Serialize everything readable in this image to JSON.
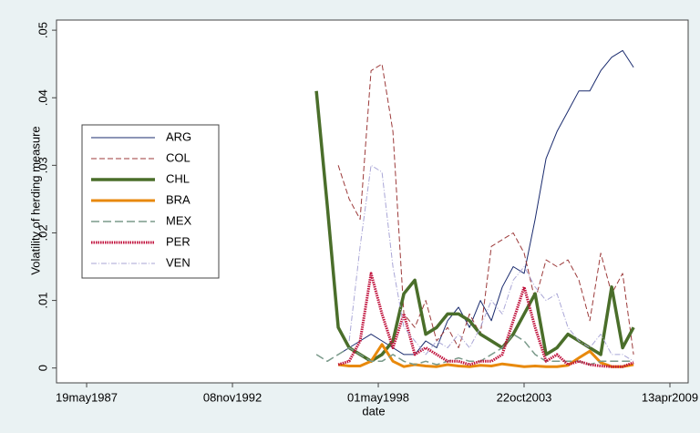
{
  "chart_data": {
    "type": "line",
    "x_label": "date",
    "y_label": "Volatility of herding measure",
    "x": [
      13150,
      13300,
      13450,
      13600,
      13750,
      13900,
      14050,
      14200,
      14350,
      14500,
      14650,
      14800,
      14950,
      15100,
      15250,
      15400,
      15550,
      15700,
      15850,
      16000,
      16150,
      16300,
      16450,
      16600,
      16750,
      16900,
      17050,
      17200,
      17350,
      17500
    ],
    "xlim": [
      9586,
      18249
    ],
    "xticks": [
      {
        "value": 9999,
        "label": "19may1987"
      },
      {
        "value": 11999,
        "label": "08nov1992"
      },
      {
        "value": 13999,
        "label": "01may1998"
      },
      {
        "value": 15999,
        "label": "22oct2003"
      },
      {
        "value": 17999,
        "label": "13apr2009"
      }
    ],
    "ylim": [
      -0.0022,
      0.0515
    ],
    "yticks": [
      0,
      {
        "value": 0.01,
        "label": ".01"
      },
      {
        "value": 0.02,
        "label": ".02"
      },
      {
        "value": 0.03,
        "label": ".03"
      },
      {
        "value": 0.04,
        "label": ".04"
      },
      {
        "value": 0.05,
        "label": ".05"
      }
    ],
    "legend": "left",
    "series": [
      {
        "name": "ARG",
        "color": "#1a2b6e",
        "values": [
          null,
          null,
          0.002,
          0.003,
          0.004,
          0.005,
          0.004,
          0.003,
          0.002,
          0.002,
          0.004,
          0.003,
          0.007,
          0.009,
          0.006,
          0.01,
          0.007,
          0.012,
          0.015,
          0.014,
          0.022,
          0.031,
          0.035,
          0.038,
          0.041,
          0.041,
          0.044,
          0.046,
          0.047,
          0.0445
        ]
      },
      {
        "name": "COL",
        "color": "#9c3a3a",
        "values": [
          null,
          null,
          0.03,
          0.025,
          0.022,
          0.044,
          0.045,
          0.035,
          0.008,
          0.006,
          0.01,
          0.004,
          0.006,
          0.003,
          0.008,
          0.005,
          0.018,
          0.019,
          0.02,
          0.017,
          0.01,
          0.016,
          0.015,
          0.016,
          0.013,
          0.007,
          0.017,
          0.011,
          0.014,
          0.002
        ]
      },
      {
        "name": "CHL",
        "color": "#4a6e2a",
        "values": [
          0.041,
          0.024,
          0.006,
          0.003,
          0.002,
          0.001,
          0.002,
          0.004,
          0.011,
          0.013,
          0.005,
          0.006,
          0.008,
          0.008,
          0.007,
          0.005,
          0.004,
          0.003,
          0.005,
          0.008,
          0.011,
          0.002,
          0.003,
          0.005,
          0.004,
          0.003,
          0.002,
          0.012,
          0.003,
          0.006
        ]
      },
      {
        "name": "BRA",
        "color": "#e8890c",
        "values": [
          null,
          null,
          0.0005,
          0.0003,
          0.0003,
          0.001,
          0.0035,
          0.001,
          0.0002,
          0.0005,
          0.0003,
          0.0002,
          0.0005,
          0.0003,
          0.0002,
          0.0004,
          0.0003,
          0.0006,
          0.0004,
          0.0002,
          0.0003,
          0.0002,
          0.0002,
          0.0004,
          0.0015,
          0.0025,
          0.0008,
          0.0002,
          0.0002,
          0.0005
        ]
      },
      {
        "name": "MEX",
        "color": "#7a9a8a",
        "values": [
          0.002,
          0.001,
          0.002,
          0.003,
          0.002,
          0.001,
          0.001,
          0.002,
          0.001,
          0.0005,
          0.001,
          0.0005,
          0.001,
          0.0015,
          0.001,
          0.001,
          0.002,
          0.003,
          0.005,
          0.004,
          0.002,
          0.001,
          0.001,
          0.001,
          0.001,
          0.0005,
          0.001,
          0.001,
          0.001,
          0.001
        ]
      },
      {
        "name": "PER",
        "color": "#c0123c",
        "values": [
          null,
          null,
          0.0005,
          0.001,
          0.004,
          0.014,
          0.008,
          0.003,
          0.008,
          0.002,
          0.003,
          0.002,
          0.001,
          0.001,
          0.0005,
          0.001,
          0.001,
          0.002,
          0.007,
          0.012,
          0.006,
          0.001,
          0.002,
          0.0005,
          0.001,
          0.0005,
          0.0003,
          0.0002,
          0.0002,
          0.0008
        ]
      },
      {
        "name": "VEN",
        "color": "#a9a6d6",
        "values": [
          null,
          null,
          null,
          0.004,
          0.018,
          0.03,
          0.029,
          0.015,
          0.006,
          0.004,
          0.002,
          0.004,
          0.003,
          0.005,
          0.003,
          0.006,
          0.01,
          0.008,
          0.013,
          0.015,
          0.012,
          0.01,
          0.011,
          0.006,
          0.004,
          0.003,
          0.005,
          0.002,
          0.002,
          0.001
        ]
      }
    ]
  }
}
